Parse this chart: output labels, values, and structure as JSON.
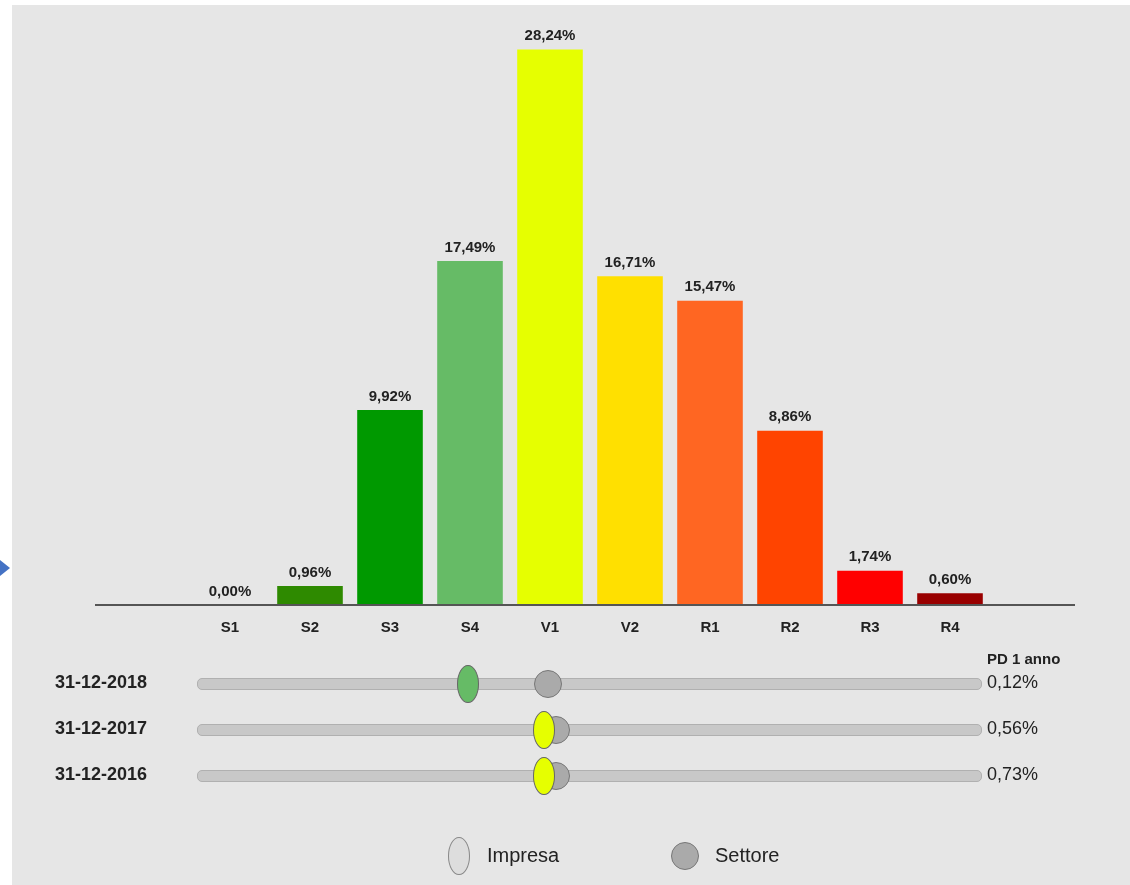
{
  "chart_data": {
    "type": "bar",
    "categories": [
      "S1",
      "S2",
      "S3",
      "S4",
      "V1",
      "V2",
      "R1",
      "R2",
      "R3",
      "R4"
    ],
    "values": [
      0.0,
      0.96,
      9.92,
      17.49,
      28.24,
      16.71,
      15.47,
      8.86,
      1.74,
      0.6
    ],
    "colors": [
      "#1e7a3c",
      "#2e8a00",
      "#009900",
      "#66bb66",
      "#e6ff00",
      "#ffe000",
      "#ff6622",
      "#ff4400",
      "#ff0000",
      "#990000"
    ],
    "value_labels": [
      "0,00%",
      "0,96%",
      "9,92%",
      "17,49%",
      "28,24%",
      "16,71%",
      "15,47%",
      "8,86%",
      "1,74%",
      "0,60%"
    ],
    "annotations": [
      "PD 1 anno",
      "31-12-2018",
      "0,12%",
      "31-12-2017",
      "0,56%",
      "31-12-2016",
      "0,73%",
      "Impresa",
      "Settore"
    ],
    "grid": false,
    "legend": false
  }
}
